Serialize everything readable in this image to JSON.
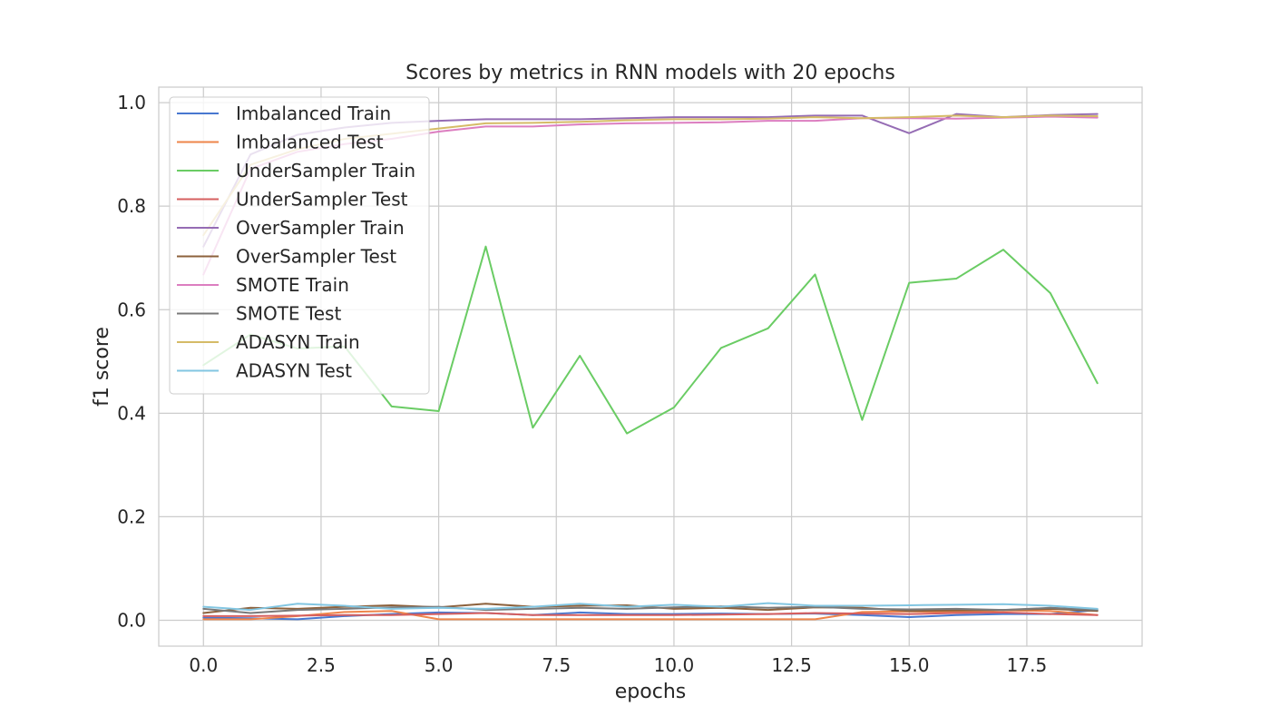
{
  "chart_data": {
    "type": "line",
    "title": "Scores by metrics in RNN models with 20 epochs",
    "xlabel": "epochs",
    "ylabel": "f1 score",
    "xlim": [
      -0.95,
      19.95
    ],
    "ylim": [
      -0.05,
      1.03
    ],
    "xticks": [
      0,
      2.5,
      5,
      7.5,
      10,
      12.5,
      15,
      17.5
    ],
    "xtick_labels": [
      "0.0",
      "2.5",
      "5.0",
      "7.5",
      "10.0",
      "12.5",
      "15.0",
      "17.5"
    ],
    "yticks": [
      0,
      0.2,
      0.4,
      0.6,
      0.8,
      1.0
    ],
    "ytick_labels": [
      "0.0",
      "0.2",
      "0.4",
      "0.6",
      "0.8",
      "1.0"
    ],
    "grid": true,
    "legend_position": "top-left",
    "x": [
      0,
      1,
      2,
      3,
      4,
      5,
      6,
      7,
      8,
      9,
      10,
      11,
      12,
      13,
      14,
      15,
      16,
      17,
      18,
      19
    ],
    "series": [
      {
        "name": "Imbalanced Train",
        "color": "#4878d0",
        "values": [
          0.005,
          0.004,
          0.002,
          0.008,
          0.012,
          0.015,
          0.014,
          0.01,
          0.015,
          0.012,
          0.012,
          0.013,
          0.012,
          0.013,
          0.01,
          0.006,
          0.01,
          0.012,
          0.012,
          0.02
        ]
      },
      {
        "name": "Imbalanced Test",
        "color": "#ee854a",
        "values": [
          0.002,
          0.002,
          0.008,
          0.016,
          0.018,
          0.002,
          0.002,
          0.002,
          0.002,
          0.002,
          0.002,
          0.002,
          0.002,
          0.002,
          0.016,
          0.017,
          0.016,
          0.019,
          0.018,
          0.01
        ]
      },
      {
        "name": "UnderSampler Train",
        "color": "#6acc64",
        "values": [
          0.493,
          0.552,
          0.525,
          0.529,
          0.413,
          0.404,
          0.722,
          0.372,
          0.511,
          0.361,
          0.411,
          0.526,
          0.564,
          0.668,
          0.387,
          0.652,
          0.66,
          0.716,
          0.632,
          0.458
        ]
      },
      {
        "name": "UnderSampler Test",
        "color": "#d65f5f",
        "values": [
          0.008,
          0.008,
          0.009,
          0.01,
          0.01,
          0.012,
          0.014,
          0.01,
          0.01,
          0.01,
          0.01,
          0.011,
          0.012,
          0.014,
          0.013,
          0.012,
          0.014,
          0.015,
          0.012,
          0.01
        ]
      },
      {
        "name": "OverSampler Train",
        "color": "#956cb4",
        "values": [
          0.722,
          0.9,
          0.938,
          0.952,
          0.961,
          0.965,
          0.968,
          0.968,
          0.968,
          0.97,
          0.972,
          0.972,
          0.972,
          0.975,
          0.975,
          0.941,
          0.978,
          0.972,
          0.976,
          0.978
        ]
      },
      {
        "name": "OverSampler Test",
        "color": "#8c613c",
        "values": [
          0.014,
          0.024,
          0.022,
          0.026,
          0.029,
          0.025,
          0.032,
          0.026,
          0.028,
          0.029,
          0.022,
          0.024,
          0.02,
          0.025,
          0.024,
          0.018,
          0.019,
          0.02,
          0.022,
          0.018
        ]
      },
      {
        "name": "SMOTE Train",
        "color": "#dc7ec0",
        "values": [
          0.668,
          0.872,
          0.905,
          0.92,
          0.93,
          0.944,
          0.954,
          0.954,
          0.958,
          0.96,
          0.961,
          0.962,
          0.965,
          0.965,
          0.97,
          0.97,
          0.969,
          0.971,
          0.973,
          0.971
        ]
      },
      {
        "name": "SMOTE Test",
        "color": "#797979",
        "values": [
          0.022,
          0.014,
          0.02,
          0.022,
          0.025,
          0.026,
          0.02,
          0.022,
          0.024,
          0.022,
          0.025,
          0.027,
          0.024,
          0.026,
          0.022,
          0.021,
          0.022,
          0.02,
          0.024,
          0.02
        ]
      },
      {
        "name": "ADASYN Train",
        "color": "#d5bb67",
        "values": [
          0.744,
          0.88,
          0.91,
          0.93,
          0.94,
          0.95,
          0.96,
          0.961,
          0.963,
          0.966,
          0.968,
          0.968,
          0.969,
          0.972,
          0.97,
          0.972,
          0.975,
          0.972,
          0.975,
          0.974
        ]
      },
      {
        "name": "ADASYN Test",
        "color": "#82c6e2",
        "values": [
          0.026,
          0.02,
          0.032,
          0.028,
          0.022,
          0.024,
          0.022,
          0.026,
          0.032,
          0.026,
          0.03,
          0.026,
          0.033,
          0.028,
          0.028,
          0.029,
          0.03,
          0.031,
          0.028,
          0.022
        ]
      }
    ]
  }
}
